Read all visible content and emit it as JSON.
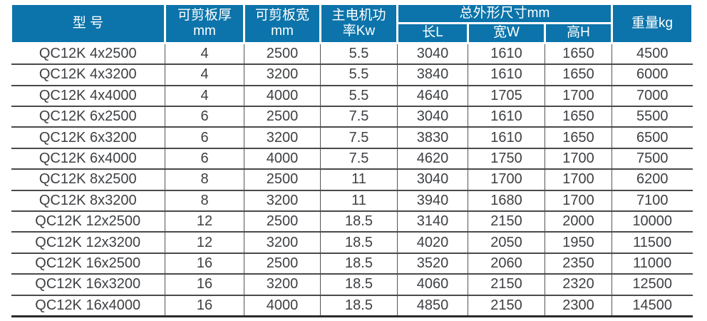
{
  "table": {
    "header": {
      "model": "型 号",
      "thickness": "可剪板厚\nmm",
      "width": "可剪板宽\nmm",
      "motor_power": "主电机功\n率Kw",
      "dimensions_group": "总外形尺寸mm",
      "length_l": "长L",
      "width_w": "宽W",
      "height_h": "高H",
      "weight": "重量kg"
    },
    "column_keys": [
      "model",
      "thickness-mm",
      "width-mm",
      "motor-power-kw",
      "length-l",
      "width-w",
      "height-h",
      "weight-kg"
    ],
    "rows": [
      [
        "QC12K 4x2500",
        "4",
        "2500",
        "5.5",
        "3040",
        "1610",
        "1650",
        "4500"
      ],
      [
        "QC12K 4x3200",
        "4",
        "3200",
        "5.5",
        "3840",
        "1610",
        "1650",
        "6000"
      ],
      [
        "QC12K 4x4000",
        "4",
        "4000",
        "5.5",
        "4640",
        "1705",
        "1700",
        "7000"
      ],
      [
        "QC12K 6x2500",
        "6",
        "2500",
        "7.5",
        "3040",
        "1610",
        "1650",
        "5500"
      ],
      [
        "QC12K 6x3200",
        "6",
        "3200",
        "7.5",
        "3830",
        "1610",
        "1650",
        "6500"
      ],
      [
        "QC12K 6x4000",
        "6",
        "4000",
        "7.5",
        "4620",
        "1750",
        "1700",
        "7500"
      ],
      [
        "QC12K 8x2500",
        "8",
        "2500",
        "11",
        "3040",
        "1700",
        "1700",
        "6200"
      ],
      [
        "QC12K 8x3200",
        "8",
        "3200",
        "11",
        "3940",
        "1680",
        "1700",
        "7100"
      ],
      [
        "QC12K 12x2500",
        "12",
        "2500",
        "18.5",
        "3140",
        "2150",
        "2000",
        "10000"
      ],
      [
        "QC12K 12x3200",
        "12",
        "3200",
        "18.5",
        "4020",
        "2050",
        "1950",
        "11500"
      ],
      [
        "QC12K 16x2500",
        "16",
        "2500",
        "18.5",
        "3520",
        "2060",
        "2350",
        "11000"
      ],
      [
        "QC12K 16x3200",
        "16",
        "3200",
        "18.5",
        "4060",
        "2150",
        "2320",
        "12500"
      ],
      [
        "QC12K 16x4000",
        "16",
        "4000",
        "18.5",
        "4850",
        "2150",
        "2300",
        "14500"
      ]
    ]
  },
  "colors": {
    "header_bg": "#0c74aa",
    "header_text": "#ffffff",
    "cell_text": "#3e4043",
    "row_border": "#4a4a4a",
    "col_border": "#545454",
    "bottom_border": "#2b2b2b"
  }
}
